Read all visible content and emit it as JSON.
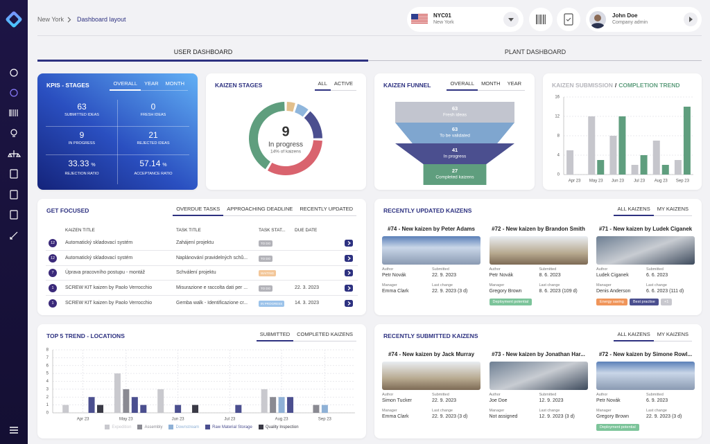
{
  "header": {
    "breadcrumb": [
      "New York",
      "Dashboard layout"
    ],
    "location": {
      "code": "NYC01",
      "city": "New York"
    },
    "user": {
      "name": "John Doe",
      "role": "Company admin"
    }
  },
  "tabs": [
    "USER DASHBOARD",
    "PLANT DASHBOARD"
  ],
  "kpis": {
    "title": "KPIS - STAGES",
    "tabs": [
      "OVERALL",
      "YEAR",
      "MONTH"
    ],
    "items": [
      {
        "value": "63",
        "label": "SUBMITTED IDEAS"
      },
      {
        "value": "0",
        "label": "FRESH IDEAS"
      },
      {
        "value": "9",
        "label": "IN PROGRESS"
      },
      {
        "value": "21",
        "label": "REJECTED IDEAS"
      },
      {
        "value": "33.33",
        "unit": "%",
        "label": "REJECTION RATIO"
      },
      {
        "value": "57.14",
        "unit": "%",
        "label": "ACCEPTANCE RATIO"
      }
    ]
  },
  "kaizen_stages": {
    "title": "KAIZEN STAGES",
    "tabs": [
      "ALL",
      "ACTIVE"
    ],
    "chart_data": {
      "type": "donut",
      "values": [
        3,
        4,
        9,
        21,
        26
      ],
      "colors": [
        "#e2bf8c",
        "#8fb6dc",
        "#4b4f8f",
        "#d9636e",
        "#5f9e7e"
      ],
      "center_value": 9,
      "center_label": "In progress",
      "center_note": "14% of kaizens"
    }
  },
  "kaizen_funnel": {
    "title": "KAIZEN FUNNEL",
    "tabs": [
      "OVERALL",
      "MONTH",
      "YEAR"
    ],
    "chart_data": {
      "type": "funnel",
      "categories": [
        "Fresh ideas",
        "To be validated",
        "In progress",
        "Completed kaizens"
      ],
      "values": [
        63,
        63,
        41,
        27
      ],
      "colors": [
        "#c2c5cf",
        "#7fa6cf",
        "#4b4f8f",
        "#5f9e7e"
      ]
    }
  },
  "submission_trend": {
    "title": {
      "submission": "KAIZEN SUBMISSION",
      "separator": "/",
      "completion": "COMPLETION TREND"
    },
    "chart_data": {
      "type": "bar",
      "categories": [
        "Apr 23",
        "May 23",
        "Jun 23",
        "Jul 23",
        "Aug 23",
        "Sep 23"
      ],
      "series": [
        {
          "color": "#c6c6cc",
          "values": [
            5,
            12,
            8,
            2,
            7,
            3
          ]
        },
        {
          "color": "#5f9e7e",
          "values": [
            null,
            3,
            12,
            4,
            2,
            14
          ]
        }
      ],
      "ylim": [
        0,
        16
      ],
      "yticks": [
        0,
        4,
        8,
        12,
        16
      ],
      "grid": true
    }
  },
  "get_focused": {
    "title": "GET FOCUSED",
    "tabs": [
      "OVERDUE TASKS",
      "APPROACHING DEADLINE",
      "RECENTLY UPDATED"
    ],
    "columns": [
      "KAIZEN TITLE",
      "TASK TITLE",
      "TASK STAT...",
      "DUE DATE"
    ],
    "rows": [
      {
        "count": "12",
        "kaizen": "Automatický skladovací systém",
        "task": "Zahájení projektu",
        "status": {
          "text": "TO DO",
          "color": "#b3b3b9"
        }
      },
      {
        "count": "12",
        "kaizen": "Automatický skladovací systém",
        "task": "Naplánování pravidelných schů...",
        "status": {
          "text": "TO DO",
          "color": "#b3b3b9"
        }
      },
      {
        "count": "7",
        "kaizen": "Úprava pracovního postupu - montáž",
        "task": "Schválení projektu",
        "status": {
          "text": "WAITING",
          "color": "#f3c79a"
        }
      },
      {
        "count": "1",
        "kaizen": "SCREW KIT kaizen by Paolo Verrocchio",
        "task": "Misurazione e raccolta dati per ...",
        "status": {
          "text": "TO DO",
          "color": "#b3b3b9"
        },
        "due": "22. 3. 2023"
      },
      {
        "count": "1",
        "kaizen": "SCREW KIT kaizen by Paolo Verrocchio",
        "task": "Gemba walk - Identificazione cr...",
        "status": {
          "text": "IN PROGRESS",
          "color": "#9cc3ea"
        },
        "due": "14. 3. 2023"
      }
    ]
  },
  "field_labels": {
    "author": "Author",
    "submitted": "Submitted",
    "manager": "Manager",
    "last_change": "Last change"
  },
  "recently_updated": {
    "title": "RECENTLY UPDATED KAIZENS",
    "tabs": [
      "ALL KAIZENS",
      "MY KAIZENS"
    ],
    "cards": [
      {
        "title": "#74 - New kaizen by Peter Adams",
        "author": "Petr Novák",
        "submitted": "22. 9. 2023",
        "manager": "Emma Clark",
        "last_change": "22. 9. 2023 (3 d)",
        "tags": []
      },
      {
        "title": "#72 - New kaizen by Brandon Smith",
        "author": "Petr Novák",
        "submitted": "8. 6. 2023",
        "manager": "Gregory Brown",
        "last_change": "8. 6. 2023 (109 d)",
        "tags": [
          {
            "text": "Deployment potential",
            "color": "#7cc49a"
          }
        ]
      },
      {
        "title": "#71 - New kaizen by Ludek Ciganek",
        "author": "Ludek Ciganek",
        "submitted": "6. 6. 2023",
        "manager": "Denis Anderson",
        "last_change": "6. 6. 2023 (111 d)",
        "tags": [
          {
            "text": "Energy saving",
            "color": "#f0955a"
          },
          {
            "text": "Best practise",
            "color": "#4b4f8f"
          },
          {
            "text": "+1",
            "color": "#c8c8ce"
          }
        ]
      }
    ]
  },
  "top5": {
    "title": "TOP 5 TREND - LOCATIONS",
    "tabs": [
      "SUBMITTED",
      "COMPLETED KAIZENS"
    ],
    "chart_data": {
      "type": "bar",
      "categories": [
        null,
        null,
        null,
        "Apr 23",
        null,
        null,
        null,
        null,
        "May 23",
        null,
        null,
        null,
        null,
        null,
        "Jun 23",
        null,
        null,
        null,
        null,
        null,
        "Jul 23",
        null,
        null,
        null,
        null,
        null,
        "Aug 23",
        null,
        null,
        null,
        null,
        "Sep 23",
        null,
        null,
        null
      ],
      "series": [
        {
          "name": "Expedition",
          "color": "#c9c9ce",
          "values": [
            null,
            1,
            null,
            null,
            null,
            null,
            null,
            5,
            null,
            null,
            null,
            null,
            3,
            null,
            null,
            null,
            null,
            null,
            null,
            null,
            null,
            null,
            null,
            null,
            3,
            null,
            null,
            null,
            null,
            null,
            null,
            null,
            null,
            null,
            null
          ]
        },
        {
          "name": "Assembly",
          "color": "#8a8a92",
          "values": [
            null,
            null,
            null,
            null,
            null,
            null,
            null,
            null,
            3,
            null,
            null,
            null,
            null,
            null,
            null,
            null,
            null,
            null,
            null,
            null,
            null,
            null,
            null,
            null,
            null,
            2,
            null,
            null,
            null,
            null,
            1,
            null,
            null,
            null,
            null
          ]
        },
        {
          "name": "Downstream",
          "color": "#8fb1d6",
          "values": [
            null,
            null,
            null,
            null,
            null,
            null,
            null,
            null,
            null,
            null,
            null,
            null,
            null,
            null,
            null,
            null,
            null,
            null,
            null,
            null,
            null,
            null,
            null,
            null,
            null,
            null,
            2,
            null,
            null,
            null,
            null,
            1,
            null,
            null,
            null
          ]
        },
        {
          "name": "Raw Material Storage",
          "color": "#4b4f8f",
          "values": [
            null,
            null,
            null,
            null,
            2,
            null,
            null,
            null,
            null,
            2,
            1,
            null,
            null,
            null,
            1,
            null,
            null,
            null,
            null,
            null,
            null,
            1,
            null,
            null,
            null,
            null,
            null,
            2,
            null,
            null,
            null,
            null,
            null,
            null,
            null
          ]
        },
        {
          "name": "Quality Inspection",
          "color": "#3a3a46",
          "values": [
            null,
            null,
            null,
            null,
            null,
            1,
            null,
            null,
            null,
            null,
            null,
            null,
            null,
            null,
            null,
            null,
            1,
            null,
            null,
            null,
            null,
            null,
            null,
            null,
            null,
            null,
            null,
            null,
            null,
            null,
            null,
            null,
            null,
            null,
            null
          ]
        }
      ],
      "ylim": [
        0,
        8
      ],
      "yticks": [
        0,
        1,
        2,
        3,
        4,
        5,
        6,
        7,
        8
      ],
      "grid": true
    }
  },
  "recently_submitted": {
    "title": "RECENTLY SUBMITTED KAIZENS",
    "tabs": [
      "ALL KAIZENS",
      "MY KAIZENS"
    ],
    "cards": [
      {
        "title": "#74 - New kaizen by Jack Murray",
        "author": "Simon Tucker",
        "submitted": "22. 9. 2023",
        "manager": "Emma Clark",
        "last_change": "22. 9. 2023 (3 d)",
        "tags": []
      },
      {
        "title": "#73 - New kaizen by Jonathan Har...",
        "author": "Joe Doe",
        "submitted": "12. 9. 2023",
        "manager": "Not assigned",
        "last_change": "12. 9. 2023 (3 d)",
        "tags": []
      },
      {
        "title": "#72 - New kaizen by Simone Rowl...",
        "author": "Petr Novák",
        "submitted": "6. 9. 2023",
        "manager": "Gregory Brown",
        "last_change": "22. 9. 2023 (3 d)",
        "tags": [
          {
            "text": "Deployment potential",
            "color": "#7cc49a"
          }
        ]
      }
    ]
  }
}
